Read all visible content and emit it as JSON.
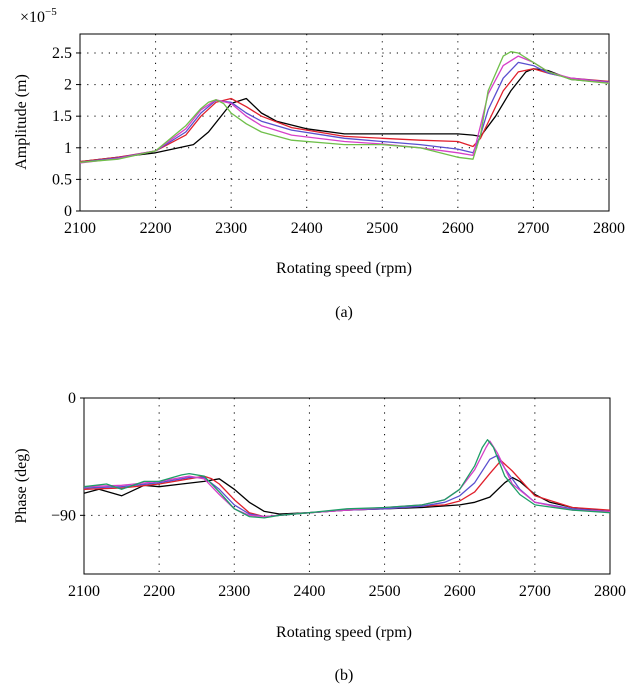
{
  "chart_data": [
    {
      "type": "line",
      "panel_label": "(a)",
      "xlabel": "Rotating speed (rpm)",
      "ylabel": "Amplitude (m)",
      "exponent_label": "×10",
      "exponent_power": "−5",
      "xlim": [
        2100,
        2800
      ],
      "ylim": [
        0,
        2.8
      ],
      "xticks": [
        2100,
        2200,
        2300,
        2400,
        2500,
        2600,
        2700,
        2800
      ],
      "yticks": [
        0,
        0.5,
        1,
        1.5,
        2,
        2.5
      ],
      "ytick_labels": [
        "0",
        "0.5",
        "1",
        "1.5",
        "2",
        "2.5"
      ],
      "grid": "dotted",
      "series": [
        {
          "color": "#000000",
          "x": [
            2100,
            2150,
            2200,
            2250,
            2270,
            2290,
            2300,
            2320,
            2340,
            2360,
            2400,
            2450,
            2500,
            2550,
            2600,
            2620,
            2630,
            2650,
            2670,
            2690,
            2700,
            2720,
            2750,
            2800
          ],
          "y": [
            0.78,
            0.85,
            0.92,
            1.05,
            1.25,
            1.55,
            1.7,
            1.78,
            1.55,
            1.42,
            1.3,
            1.22,
            1.22,
            1.22,
            1.22,
            1.2,
            1.18,
            1.5,
            1.9,
            2.2,
            2.25,
            2.22,
            2.08,
            2.03
          ]
        },
        {
          "color": "#e0202c",
          "x": [
            2100,
            2150,
            2200,
            2240,
            2260,
            2280,
            2300,
            2320,
            2340,
            2380,
            2450,
            2500,
            2550,
            2600,
            2620,
            2630,
            2640,
            2660,
            2680,
            2700,
            2720,
            2750,
            2800
          ],
          "y": [
            0.78,
            0.85,
            0.95,
            1.2,
            1.5,
            1.72,
            1.78,
            1.65,
            1.5,
            1.32,
            1.18,
            1.15,
            1.12,
            1.1,
            1.02,
            1.15,
            1.4,
            1.9,
            2.2,
            2.25,
            2.18,
            2.1,
            2.05
          ]
        },
        {
          "color": "#5a4fcf",
          "x": [
            2100,
            2150,
            2200,
            2240,
            2260,
            2280,
            2300,
            2320,
            2340,
            2380,
            2450,
            2500,
            2550,
            2600,
            2620,
            2630,
            2640,
            2660,
            2680,
            2700,
            2720,
            2750,
            2800
          ],
          "y": [
            0.77,
            0.84,
            0.95,
            1.25,
            1.55,
            1.75,
            1.72,
            1.55,
            1.42,
            1.28,
            1.15,
            1.1,
            1.05,
            0.98,
            0.92,
            1.2,
            1.6,
            2.1,
            2.35,
            2.3,
            2.18,
            2.1,
            2.04
          ]
        },
        {
          "color": "#d640c8",
          "x": [
            2100,
            2150,
            2200,
            2240,
            2260,
            2280,
            2300,
            2320,
            2340,
            2380,
            2450,
            2500,
            2550,
            2600,
            2620,
            2630,
            2640,
            2660,
            2680,
            2700,
            2720,
            2750,
            2800
          ],
          "y": [
            0.76,
            0.83,
            0.95,
            1.3,
            1.6,
            1.76,
            1.7,
            1.5,
            1.35,
            1.2,
            1.1,
            1.06,
            1.0,
            0.92,
            0.88,
            1.35,
            1.85,
            2.3,
            2.45,
            2.35,
            2.2,
            2.1,
            2.03
          ]
        },
        {
          "color": "#6fbf4a",
          "x": [
            2100,
            2150,
            2200,
            2240,
            2260,
            2270,
            2280,
            2290,
            2300,
            2320,
            2340,
            2380,
            2450,
            2500,
            2550,
            2600,
            2620,
            2630,
            2640,
            2660,
            2670,
            2680,
            2700,
            2720,
            2750,
            2800
          ],
          "y": [
            0.77,
            0.82,
            0.95,
            1.35,
            1.62,
            1.72,
            1.76,
            1.7,
            1.55,
            1.38,
            1.25,
            1.12,
            1.05,
            1.05,
            1.0,
            0.85,
            0.82,
            1.2,
            1.9,
            2.45,
            2.52,
            2.5,
            2.35,
            2.2,
            2.08,
            2.02
          ]
        }
      ]
    },
    {
      "type": "line",
      "panel_label": "(b)",
      "xlabel": "Rotating speed (rpm)",
      "ylabel": "Phase (deg)",
      "xlim": [
        2100,
        2800
      ],
      "ylim": [
        -135,
        0
      ],
      "xticks": [
        2100,
        2200,
        2300,
        2400,
        2500,
        2600,
        2700,
        2800
      ],
      "yticks": [
        0,
        -90
      ],
      "ytick_labels": [
        "0",
        "−90"
      ],
      "grid": "dotted",
      "series": [
        {
          "color": "#000000",
          "x": [
            2100,
            2120,
            2150,
            2180,
            2200,
            2230,
            2260,
            2280,
            2300,
            2320,
            2340,
            2360,
            2400,
            2450,
            2500,
            2550,
            2600,
            2620,
            2640,
            2660,
            2670,
            2680,
            2700,
            2720,
            2750,
            2800
          ],
          "y": [
            -73,
            -70,
            -75,
            -67,
            -68,
            -66,
            -64,
            -62,
            -70,
            -80,
            -87,
            -89,
            -88,
            -86,
            -85,
            -84,
            -82,
            -80,
            -76,
            -65,
            -61,
            -64,
            -74,
            -80,
            -84,
            -87
          ]
        },
        {
          "color": "#e0202c",
          "x": [
            2100,
            2150,
            2200,
            2240,
            2260,
            2270,
            2280,
            2300,
            2320,
            2340,
            2360,
            2400,
            2450,
            2500,
            2550,
            2580,
            2600,
            2620,
            2640,
            2655,
            2670,
            2700,
            2750,
            2800
          ],
          "y": [
            -70,
            -69,
            -66,
            -62,
            -60,
            -62,
            -66,
            -78,
            -88,
            -91,
            -90,
            -88,
            -86,
            -85,
            -83,
            -82,
            -79,
            -72,
            -58,
            -48,
            -56,
            -75,
            -84,
            -86
          ]
        },
        {
          "color": "#5a4fcf",
          "x": [
            2100,
            2150,
            2200,
            2240,
            2260,
            2280,
            2300,
            2320,
            2340,
            2360,
            2400,
            2450,
            2500,
            2550,
            2580,
            2600,
            2620,
            2640,
            2650,
            2660,
            2680,
            2700,
            2750,
            2800
          ],
          "y": [
            -69,
            -68,
            -65,
            -61,
            -61,
            -70,
            -82,
            -89,
            -91,
            -90,
            -88,
            -86,
            -85,
            -83,
            -80,
            -75,
            -65,
            -47,
            -44,
            -54,
            -70,
            -80,
            -85,
            -87
          ]
        },
        {
          "color": "#d640c8",
          "x": [
            2100,
            2150,
            2200,
            2240,
            2260,
            2280,
            2300,
            2320,
            2340,
            2360,
            2400,
            2450,
            2500,
            2550,
            2580,
            2600,
            2620,
            2635,
            2640,
            2650,
            2670,
            2700,
            2750,
            2800
          ],
          "y": [
            -68,
            -67,
            -64,
            -60,
            -62,
            -74,
            -85,
            -90,
            -91,
            -90,
            -88,
            -86,
            -84,
            -82,
            -78,
            -70,
            -55,
            -38,
            -33,
            -42,
            -66,
            -80,
            -86,
            -87
          ]
        },
        {
          "color": "#1e9e66",
          "x": [
            2100,
            2130,
            2150,
            2180,
            2200,
            2230,
            2240,
            2260,
            2280,
            2300,
            2320,
            2340,
            2360,
            2400,
            2450,
            2500,
            2550,
            2580,
            2600,
            2620,
            2630,
            2637,
            2645,
            2660,
            2680,
            2700,
            2750,
            2800
          ],
          "y": [
            -68,
            -66,
            -70,
            -64,
            -64,
            -59,
            -58,
            -60,
            -72,
            -85,
            -91,
            -92,
            -90,
            -88,
            -85,
            -84,
            -82,
            -78,
            -70,
            -52,
            -38,
            -32,
            -38,
            -60,
            -74,
            -82,
            -86,
            -88
          ]
        }
      ]
    }
  ]
}
